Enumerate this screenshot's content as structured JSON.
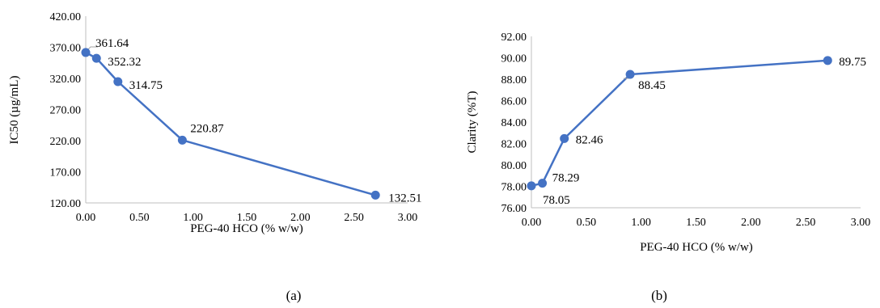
{
  "chart_data": [
    {
      "type": "line",
      "panel_label": "(a)",
      "xlabel": "PEG-40 HCO (% w/w)",
      "ylabel": "IC50 (µg/mL)",
      "xlim": [
        0,
        3
      ],
      "ylim": [
        120,
        420
      ],
      "x_ticks": [
        "0.00",
        "0.50",
        "1.00",
        "1.50",
        "2.00",
        "2.50",
        "3.00"
      ],
      "y_ticks": [
        "120.00",
        "170.00",
        "220.00",
        "270.00",
        "320.00",
        "370.00",
        "420.00"
      ],
      "grid": false,
      "color": "#4472C4",
      "x": [
        0,
        0.1,
        0.3,
        0.9,
        2.7
      ],
      "y": [
        361.64,
        352.32,
        314.75,
        220.87,
        132.51
      ],
      "data_labels": [
        "361.64",
        "352.32",
        "314.75",
        "220.87",
        "132.51"
      ]
    },
    {
      "type": "line",
      "panel_label": "(b)",
      "xlabel": "PEG-40 HCO (% w/w)",
      "ylabel": "Clarity (%T)",
      "xlim": [
        0,
        3
      ],
      "ylim": [
        76,
        92
      ],
      "x_ticks": [
        "0.00",
        "0.50",
        "1.00",
        "1.50",
        "2.00",
        "2.50",
        "3.00"
      ],
      "y_ticks": [
        "76.00",
        "78.00",
        "80.00",
        "82.00",
        "84.00",
        "86.00",
        "88.00",
        "90.00",
        "92.00"
      ],
      "grid": false,
      "color": "#4472C4",
      "x": [
        0,
        0.1,
        0.3,
        0.9,
        2.7
      ],
      "y": [
        78.05,
        78.29,
        82.46,
        88.45,
        89.75
      ],
      "data_labels": [
        "78.05",
        "78.29",
        "82.46",
        "88.45",
        "89.75"
      ]
    }
  ]
}
